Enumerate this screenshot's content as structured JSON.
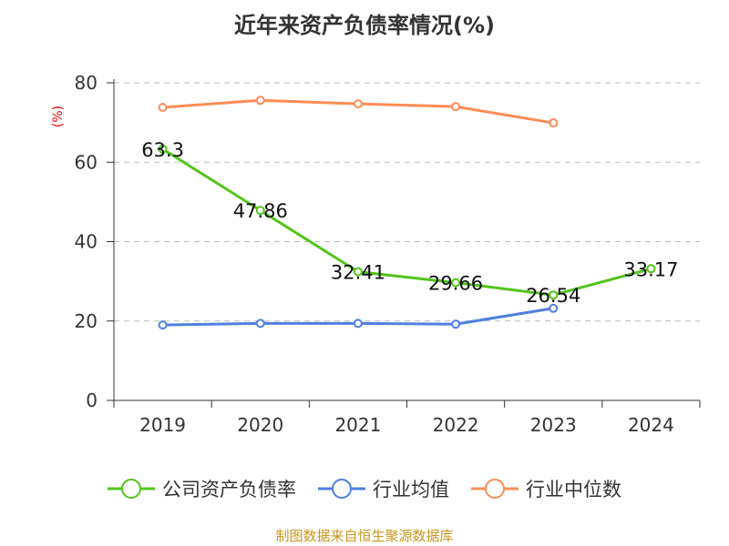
{
  "chart_data": {
    "type": "line",
    "title": "近年来资产负债率情况(%)",
    "ylabel": "(%)",
    "xlabel": "",
    "ylim": [
      0,
      80
    ],
    "yticks": [
      0,
      20,
      40,
      60,
      80
    ],
    "grid": true,
    "legend_position": "bottom",
    "categories": [
      "2019",
      "2020",
      "2021",
      "2022",
      "2023",
      "2024"
    ],
    "series": [
      {
        "name": "公司资产负债率",
        "color": "#52c41a",
        "values": [
          63.3,
          47.86,
          32.41,
          29.66,
          26.54,
          33.17
        ],
        "labels": [
          "63.3",
          "47.86",
          "32.41",
          "29.66",
          "26.54",
          "33.17"
        ]
      },
      {
        "name": "行业均值",
        "color": "#4f7fe0",
        "values": [
          19.0,
          19.4,
          19.4,
          19.2,
          23.2,
          null
        ]
      },
      {
        "name": "行业中位数",
        "color": "#ff8c55",
        "values": [
          73.8,
          75.6,
          74.7,
          74.0,
          69.9,
          null
        ]
      }
    ]
  },
  "footer": "制图数据来自恒生聚源数据库"
}
